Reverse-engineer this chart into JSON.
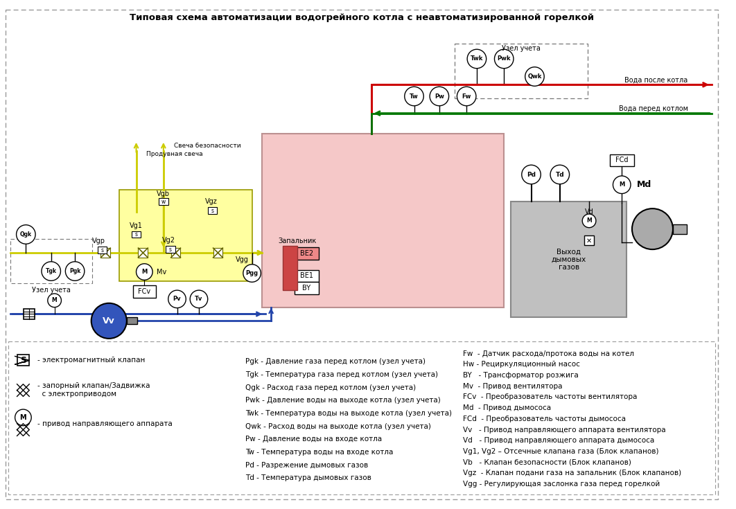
{
  "title": "Типовая схема автоматизации водогрейного котла с неавтоматизированной горелкой",
  "bg_color": "#ffffff",
  "legend_left_col1": [
    "Pgk - Давление газа перед котлом (узел учета)",
    "Tgk - Температура газа перед котлом (узел учета)",
    "Qgk - Расход газа перед котлом (узел учета)",
    "Pwk - Давление воды на выходе котла (узел учета)",
    "Twk - Температура воды на выходе котла (узел учета)",
    "Qwk - Расход воды на выходе котла (узел учета)",
    "Pw - Давление воды на входе котла",
    "Tw - Температура воды на входе котла",
    "Pd - Разрежение дымовых газов",
    "Td - Температура дымовых газов"
  ],
  "legend_right_col2": [
    "Fw  - Датчик расхода/протока воды на котел",
    "Hw - Рециркуляционный насос",
    "BY   - Трансформатор розжига",
    "Mv  - Привод вентилятора",
    "FCv  - Преобразователь частоты вентилятора",
    "Md  - Привод дымососа",
    "FCd  - Преобразователь частоты дымососа",
    "Vv   - Привод направляющего аппарата вентилятора",
    "Vd   - Привод направляющего аппарата дымососа",
    "Vg1, Vg2 – Отсечные клапана газа (Блок клапанов)",
    "Vb   - Клапан безопасности (Блок клапанов)",
    "Vgz  - Клапан подани газа на запальник (Блок клапанов)",
    "Vgg - Регулирующая заслонка газа перед горелкой"
  ],
  "red": "#cc0000",
  "green": "#007700",
  "yellow_fill": "#ffffa0",
  "yellow_edge": "#999900",
  "gas_line": "#cccc00",
  "blue_line": "#2244aa",
  "boiler_fill": "#f5c8c8",
  "boiler_edge": "#bb9090",
  "flue_fill": "#c0c0c0",
  "flue_edge": "#888888",
  "dash_edge": "#777777"
}
